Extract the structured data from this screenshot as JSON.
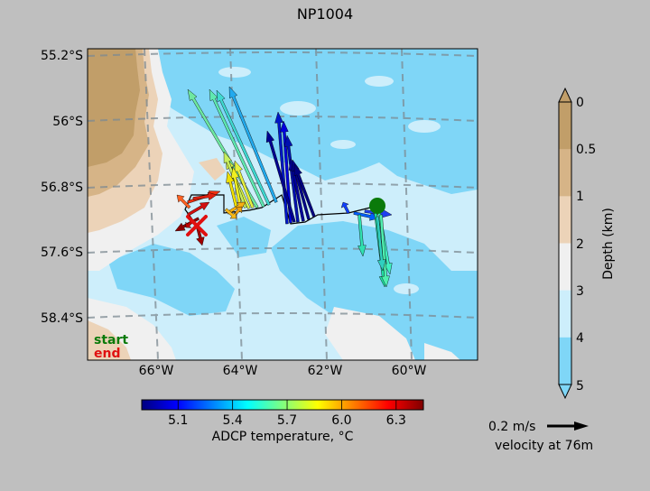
{
  "title": "NP1004",
  "map": {
    "lat_ticks": [
      "55.2°S",
      "56°S",
      "56.8°S",
      "57.6°S",
      "58.4°S"
    ],
    "lon_ticks": [
      "66°W",
      "64°W",
      "62°W",
      "60°W"
    ],
    "legend_start": "start",
    "legend_end": "end",
    "start_color": "#0a7a0a",
    "end_color": "#e01010"
  },
  "depth_colorbar": {
    "label": "Depth (km)",
    "ticks": [
      "0",
      "0.5",
      "1",
      "2",
      "3",
      "4",
      "5"
    ],
    "colors": [
      "#c19e69",
      "#d6b487",
      "#ecd3b8",
      "#f0f0f0",
      "#cdeefb",
      "#7fd6f7"
    ]
  },
  "temp_colorbar": {
    "label": "ADCP temperature, °C",
    "ticks": [
      "5.1",
      "5.4",
      "5.7",
      "6.0",
      "6.3"
    ],
    "range": [
      4.9,
      6.45
    ]
  },
  "scale": {
    "label": "0.2 m/s",
    "caption": "velocity at 76m"
  }
}
